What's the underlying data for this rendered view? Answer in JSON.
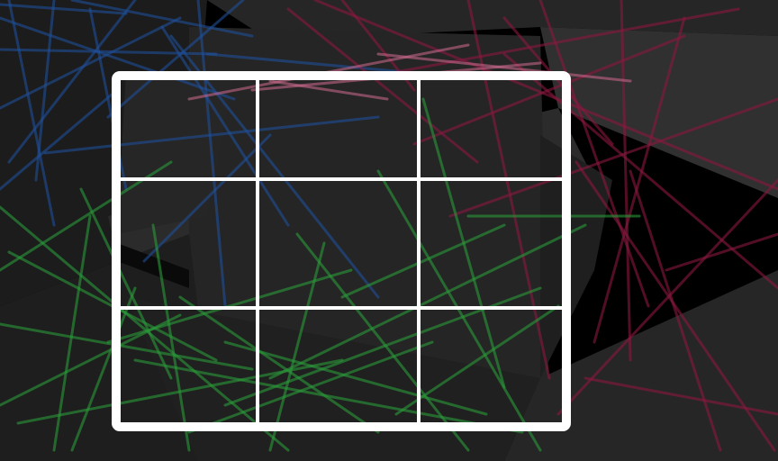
{
  "scene": {
    "background_color": "#000000",
    "panel_colors": [
      "#1a1a1a",
      "#222222",
      "#262626",
      "#2b2b2b",
      "#1e1e1e"
    ],
    "line_colors": {
      "blue": "#1f4f9a",
      "green": "#2a9a3a",
      "red": "#8a1840",
      "pink": "#d06a90"
    }
  },
  "grid": {
    "rows": 3,
    "columns": 3,
    "frame_color": "#ffffff",
    "line_color": "#ffffff"
  }
}
